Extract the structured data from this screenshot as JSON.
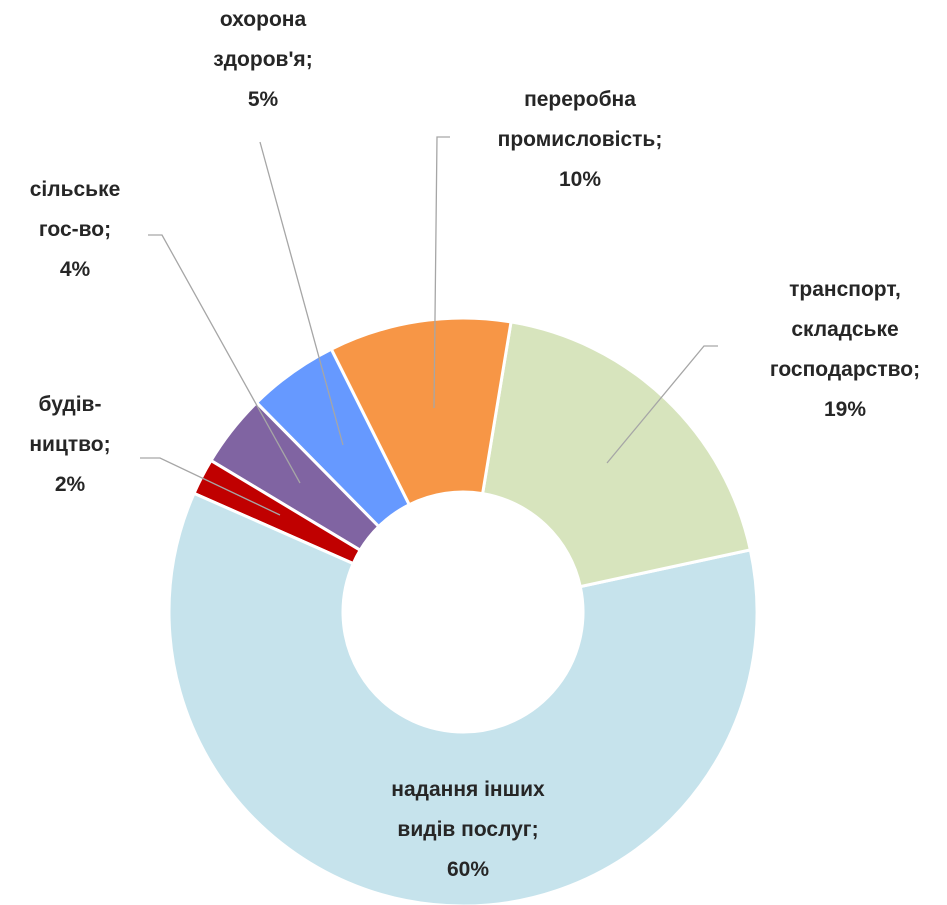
{
  "chart_data": {
    "type": "donut",
    "categories": [
      "переробна промисловість",
      "транспорт, складське господарство",
      "надання інших видів послуг",
      "будів-ництво",
      "сільське гос-во",
      "охорона здоров'я"
    ],
    "values": [
      10,
      19,
      60,
      2,
      4,
      5
    ],
    "value_labels": [
      "10%",
      "19%",
      "60%",
      "2%",
      "4%",
      "5%"
    ],
    "label_separator": ";",
    "colors": [
      "#f79646",
      "#d7e4bd",
      "#c6e3ec",
      "#c00000",
      "#8064a2",
      "#6699ff"
    ]
  }
}
